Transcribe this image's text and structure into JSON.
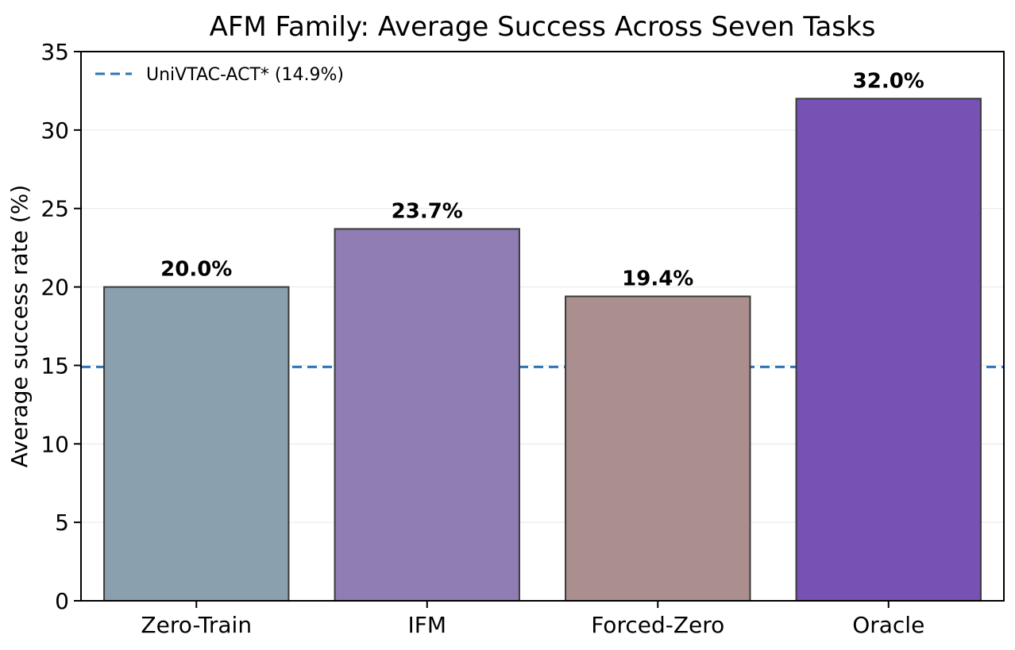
{
  "chart_data": {
    "type": "bar",
    "title": "AFM Family: Average Success Across Seven Tasks",
    "xlabel": "",
    "ylabel": "Average success rate (%)",
    "ylim": [
      0,
      35
    ],
    "yticks": [
      0,
      5,
      10,
      15,
      20,
      25,
      30,
      35
    ],
    "categories": [
      "Zero-Train",
      "IFM",
      "Forced-Zero",
      "Oracle"
    ],
    "values": [
      20.0,
      23.7,
      19.4,
      32.0
    ],
    "value_labels": [
      "20.0%",
      "23.7%",
      "19.4%",
      "32.0%"
    ],
    "bar_colors": [
      "#8aa0af",
      "#8f7db4",
      "#ab8e8e",
      "#7751b3"
    ],
    "bar_edge_color": "#3a3a3a",
    "grid": "horizontal, light",
    "reference_line": {
      "label": "UniVTAC-ACT* (14.9%)",
      "value": 14.9,
      "color": "#2f74b5",
      "style": "dashed"
    },
    "legend": {
      "placement": "top-left",
      "entries": [
        "UniVTAC-ACT* (14.9%)"
      ]
    }
  }
}
